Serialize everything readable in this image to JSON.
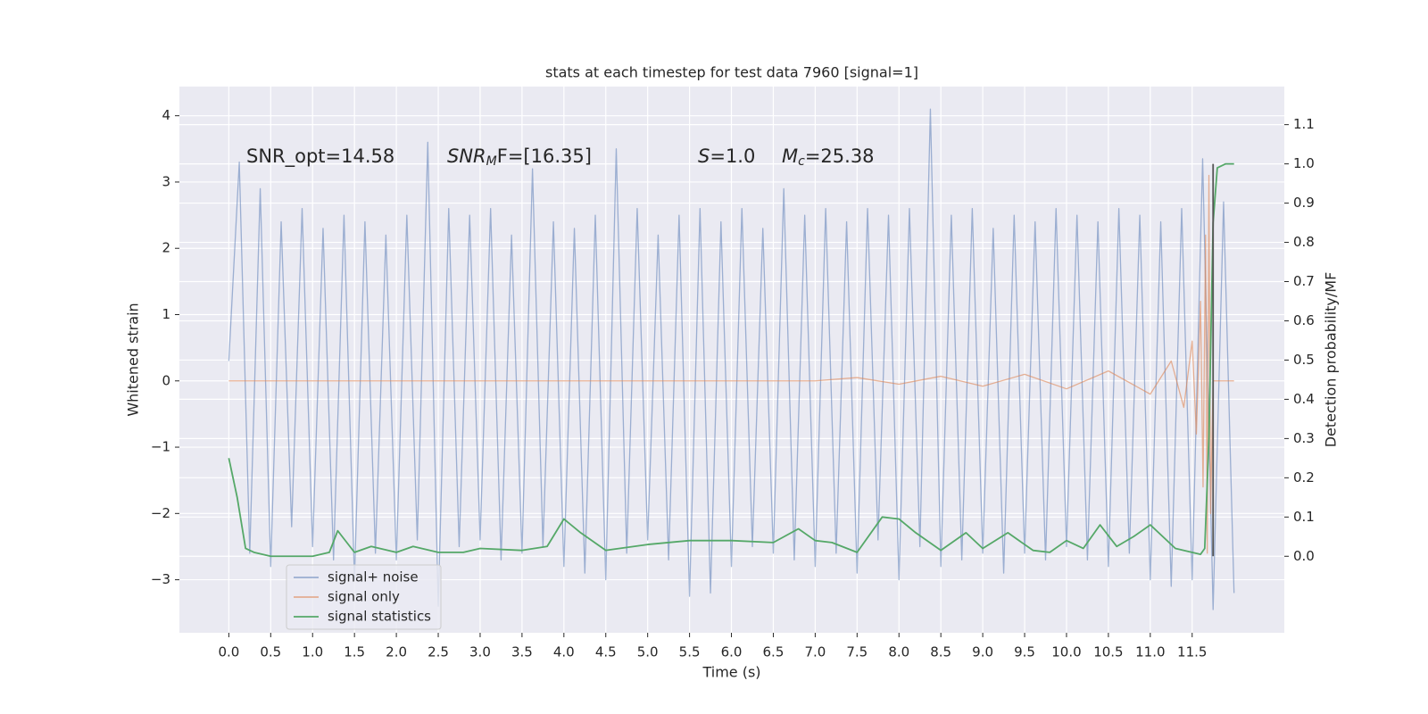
{
  "chart_data": {
    "type": "line",
    "title": "stats at each timestep for test data 7960 [signal=1]",
    "xlabel": "Time (s)",
    "ylabel": "Whitened strain",
    "y2label": "Detection probability/MF",
    "background": "#eaeaf2",
    "grid": true,
    "legend_loc": "lower left",
    "xlim": [
      -0.59,
      12.6
    ],
    "ylim": [
      -3.8,
      4.44
    ],
    "y2lim": [
      -0.195,
      1.197
    ],
    "xticks": [
      {
        "value": 0,
        "label": "0.0"
      },
      0.5,
      {
        "value": 1,
        "label": "1.0"
      },
      1.5,
      {
        "value": 2,
        "label": "2.0"
      },
      2.5,
      {
        "value": 3,
        "label": "3.0"
      },
      3.5,
      {
        "value": 4,
        "label": "4.0"
      },
      4.5,
      {
        "value": 5,
        "label": "5.0"
      },
      5.5,
      {
        "value": 6,
        "label": "6.0"
      },
      6.5,
      {
        "value": 7,
        "label": "7.0"
      },
      7.5,
      {
        "value": 8,
        "label": "8.0"
      },
      8.5,
      {
        "value": 9,
        "label": "9.0"
      },
      9.5,
      {
        "value": 10,
        "label": "10.0"
      },
      10.5,
      {
        "value": 11,
        "label": "11.0"
      },
      11.5
    ],
    "yticks": [
      {
        "value": -3,
        "label": "−3"
      },
      {
        "value": -2,
        "label": "−2"
      },
      {
        "value": -1,
        "label": "−1"
      },
      0,
      1,
      2,
      3,
      4
    ],
    "y2ticks": [
      {
        "value": 0,
        "label": "0.0"
      },
      0.1,
      0.2,
      0.3,
      0.4,
      0.5,
      0.6,
      0.7,
      0.8,
      0.9,
      {
        "value": 1,
        "label": "1.0"
      },
      1.1
    ],
    "annotations": [
      {
        "text": "SNR_opt=14.58"
      },
      {
        "text": "SNR",
        "sub": "M",
        "tail": "F=[16.35]"
      },
      {
        "text": "S",
        "tail": "=1.0"
      },
      {
        "text": "M",
        "sub": "c",
        "tail": "=25.38"
      }
    ],
    "vlines": [
      {
        "x": 11.75,
        "ymin": 0,
        "ymax": 1,
        "color": "#555555",
        "axis": "y2"
      }
    ],
    "series": [
      {
        "name": "signal+ noise",
        "color": "#4c72b0",
        "opacity": 0.5,
        "x": [
          0,
          0.125,
          0.25,
          0.375,
          0.5,
          0.625,
          0.75,
          0.875,
          1,
          1.125,
          1.25,
          1.375,
          1.5,
          1.625,
          1.75,
          1.875,
          2,
          2.125,
          2.25,
          2.375,
          2.5,
          2.625,
          2.75,
          2.875,
          3,
          3.125,
          3.25,
          3.375,
          3.5,
          3.625,
          3.75,
          3.875,
          4,
          4.125,
          4.25,
          4.375,
          4.5,
          4.625,
          4.75,
          4.875,
          5,
          5.125,
          5.25,
          5.375,
          5.5,
          5.625,
          5.75,
          5.875,
          6,
          6.125,
          6.25,
          6.375,
          6.5,
          6.625,
          6.75,
          6.875,
          7,
          7.125,
          7.25,
          7.375,
          7.5,
          7.625,
          7.75,
          7.875,
          8,
          8.125,
          8.25,
          8.375,
          8.5,
          8.625,
          8.75,
          8.875,
          9,
          9.125,
          9.25,
          9.375,
          9.5,
          9.625,
          9.75,
          9.875,
          10,
          10.125,
          10.25,
          10.375,
          10.5,
          10.625,
          10.75,
          10.875,
          11,
          11.125,
          11.25,
          11.375,
          11.5,
          11.625,
          11.75,
          11.875,
          12
        ],
        "values": [
          0.3,
          3.3,
          -2.6,
          2.9,
          -2.8,
          2.4,
          -2.2,
          2.6,
          -2.5,
          2.3,
          -2.7,
          2.5,
          -3.0,
          2.4,
          -2.6,
          2.2,
          -2.7,
          2.5,
          -2.4,
          3.6,
          -3.4,
          2.6,
          -2.5,
          2.5,
          -2.4,
          2.6,
          -2.7,
          2.2,
          -2.6,
          3.2,
          -2.5,
          2.4,
          -2.8,
          2.3,
          -2.9,
          2.5,
          -3.0,
          3.5,
          -2.6,
          2.6,
          -2.4,
          2.2,
          -2.7,
          2.5,
          -3.25,
          2.6,
          -3.2,
          2.4,
          -2.8,
          2.6,
          -2.5,
          2.3,
          -2.6,
          2.9,
          -2.7,
          2.5,
          -2.8,
          2.6,
          -2.6,
          2.4,
          -2.9,
          2.6,
          -2.4,
          2.5,
          -3.0,
          2.6,
          -2.5,
          4.1,
          -2.8,
          2.5,
          -2.7,
          2.6,
          -2.6,
          2.3,
          -2.9,
          2.5,
          -2.6,
          2.4,
          -2.7,
          2.6,
          -2.5,
          2.5,
          -2.7,
          2.4,
          -2.8,
          2.6,
          -2.6,
          2.5,
          -3.0,
          2.4,
          -3.1,
          2.6,
          -3.0,
          3.35,
          -3.45,
          2.7,
          -3.2
        ]
      },
      {
        "name": "signal only",
        "color": "#dd8452",
        "opacity": 0.6,
        "x": [
          0,
          7.0,
          7.5,
          8.0,
          8.5,
          9.0,
          9.5,
          10.0,
          10.5,
          11.0,
          11.25,
          11.4,
          11.5,
          11.55,
          11.6,
          11.63,
          11.66,
          11.68,
          11.7,
          11.72,
          11.75,
          12.0
        ],
        "values": [
          0,
          0,
          0.05,
          -0.05,
          0.07,
          -0.08,
          0.1,
          -0.12,
          0.15,
          -0.2,
          0.3,
          -0.4,
          0.6,
          -0.8,
          1.2,
          -1.6,
          2.2,
          -2.6,
          3.1,
          -2.0,
          0,
          0
        ]
      },
      {
        "name": "signal statistics",
        "color": "#55a868",
        "opacity": 1,
        "axis": "y2",
        "x": [
          0,
          0.1,
          0.2,
          0.3,
          0.5,
          0.7,
          1.0,
          1.2,
          1.3,
          1.5,
          1.7,
          2.0,
          2.2,
          2.5,
          2.8,
          3.0,
          3.5,
          3.8,
          4.0,
          4.2,
          4.5,
          5.0,
          5.5,
          6.0,
          6.5,
          6.8,
          7.0,
          7.2,
          7.5,
          7.8,
          8.0,
          8.2,
          8.5,
          8.8,
          9.0,
          9.3,
          9.6,
          9.8,
          10.0,
          10.2,
          10.4,
          10.6,
          10.8,
          11.0,
          11.3,
          11.6,
          11.65,
          11.7,
          11.75,
          11.8,
          11.9,
          12.0
        ],
        "values": [
          0.25,
          0.15,
          0.02,
          0.01,
          0.0,
          0.0,
          0.0,
          0.01,
          0.065,
          0.01,
          0.025,
          0.01,
          0.025,
          0.01,
          0.01,
          0.02,
          0.015,
          0.025,
          0.095,
          0.06,
          0.015,
          0.03,
          0.04,
          0.04,
          0.035,
          0.07,
          0.04,
          0.035,
          0.01,
          0.1,
          0.095,
          0.06,
          0.015,
          0.06,
          0.02,
          0.06,
          0.015,
          0.01,
          0.04,
          0.02,
          0.08,
          0.025,
          0.05,
          0.08,
          0.02,
          0.005,
          0.02,
          0.3,
          0.85,
          0.99,
          1.0,
          1.0
        ]
      }
    ]
  }
}
